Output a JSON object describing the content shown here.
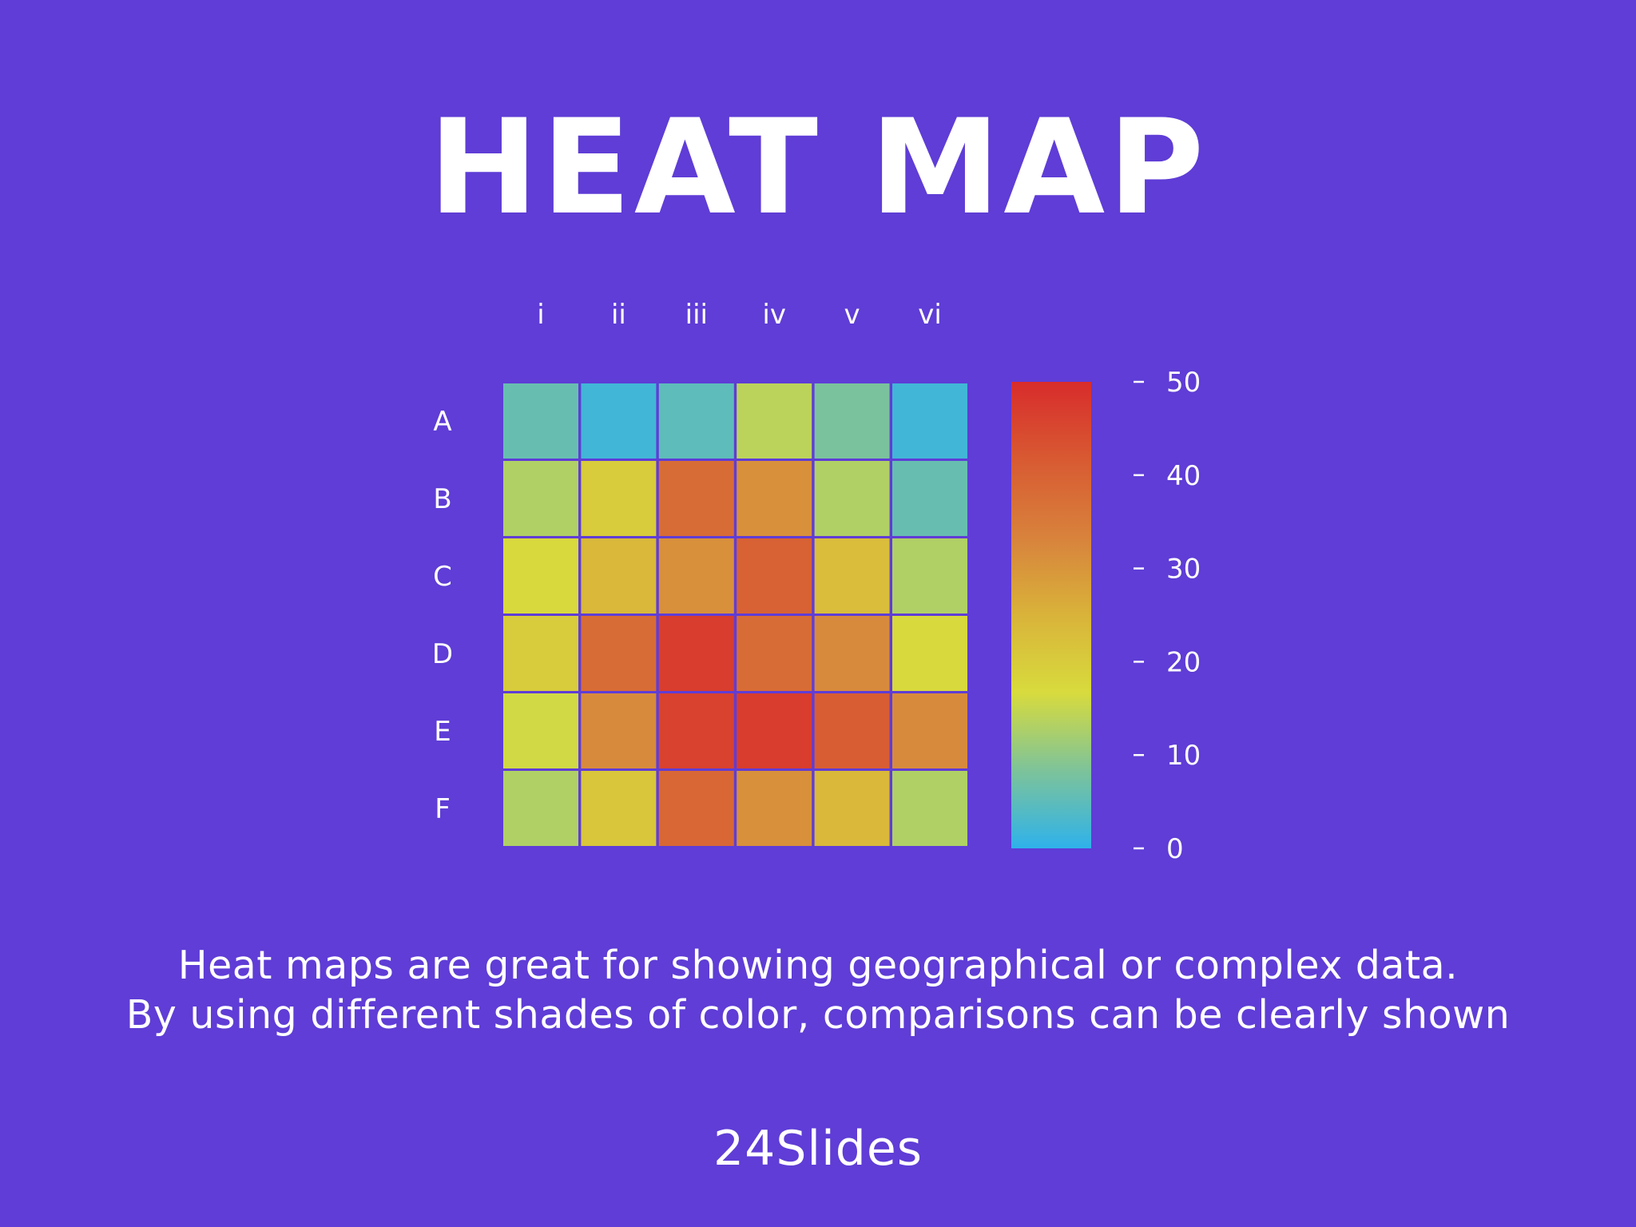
{
  "colors": {
    "background": "#5f3dd6",
    "text": "#ffffff",
    "scale": [
      "#2fb2ea",
      "#7dc39a",
      "#d8db3d",
      "#d9b33a",
      "#d8823c",
      "#d85a32",
      "#d82c2c"
    ]
  },
  "slide": {
    "title": "HEAT MAP",
    "caption_lines": [
      "Heat maps are great for showing geographical or complex data.",
      "By using different shades of color, comparisons can be clearly shown"
    ],
    "brand": "24Slides"
  },
  "chart_data": {
    "type": "heatmap",
    "title": "",
    "columns": [
      "i",
      "ii",
      "iii",
      "iv",
      "v",
      "vi"
    ],
    "rows": [
      "A",
      "B",
      "C",
      "D",
      "E",
      "F"
    ],
    "values": [
      [
        6,
        2,
        5,
        14,
        8,
        2
      ],
      [
        13,
        20,
        38,
        31,
        13,
        6
      ],
      [
        17,
        24,
        31,
        40,
        23,
        13
      ],
      [
        20,
        38,
        47,
        38,
        32,
        17
      ],
      [
        16,
        32,
        46,
        47,
        41,
        32
      ],
      [
        13,
        21,
        39,
        31,
        24,
        13
      ]
    ],
    "colorbar": {
      "min": 0,
      "max": 50,
      "ticks": [
        50,
        40,
        30,
        20,
        10,
        0
      ]
    }
  }
}
